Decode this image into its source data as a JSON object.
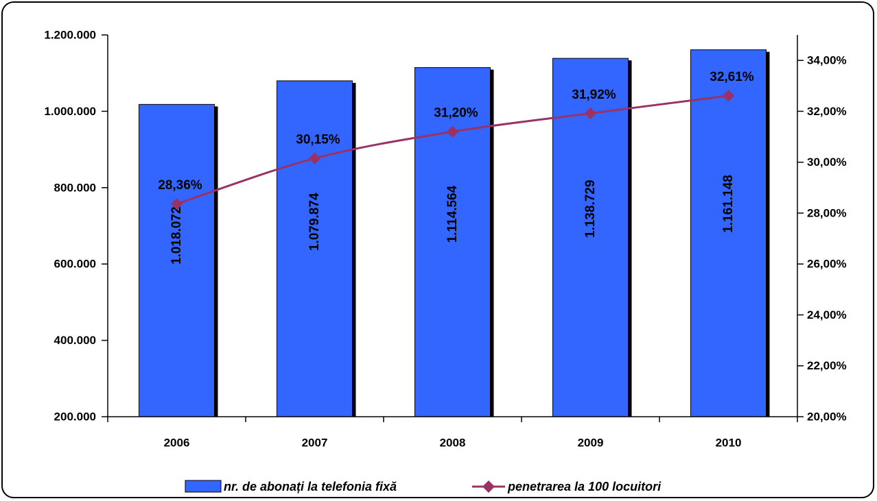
{
  "chart_data": {
    "type": "bar",
    "categories": [
      "2006",
      "2007",
      "2008",
      "2009",
      "2010"
    ],
    "series": [
      {
        "name": "nr. de abonați la telefonia fixă",
        "kind": "bar",
        "axis": "left",
        "color": "#3366ff",
        "values": [
          1018072,
          1079874,
          1114564,
          1138729,
          1161148
        ],
        "labels": [
          "1.018.072",
          "1.079.874",
          "1.114.564",
          "1.138.729",
          "1.161.148"
        ]
      },
      {
        "name": "penetrarea la 100 locuitori",
        "kind": "line",
        "axis": "right",
        "color": "#993366",
        "values": [
          28.36,
          30.15,
          31.2,
          31.92,
          32.61
        ],
        "labels": [
          "28,36%",
          "30,15%",
          "31,20%",
          "31,92%",
          "32,61%"
        ]
      }
    ],
    "y_left": {
      "ylim": [
        200000,
        1200000
      ],
      "ticks": [
        200000,
        400000,
        600000,
        800000,
        1000000,
        1200000
      ],
      "tick_labels": [
        "200.000",
        "400.000",
        "600.000",
        "800.000",
        "1.000.000",
        "1.200.000"
      ]
    },
    "y_right": {
      "ylim": [
        20,
        35
      ],
      "ticks": [
        20,
        22,
        24,
        26,
        28,
        30,
        32,
        34
      ],
      "tick_labels": [
        "20,00%",
        "22,00%",
        "24,00%",
        "26,00%",
        "28,00%",
        "30,00%",
        "32,00%",
        "34,00%"
      ]
    },
    "grid": false,
    "legend_position": "bottom"
  }
}
